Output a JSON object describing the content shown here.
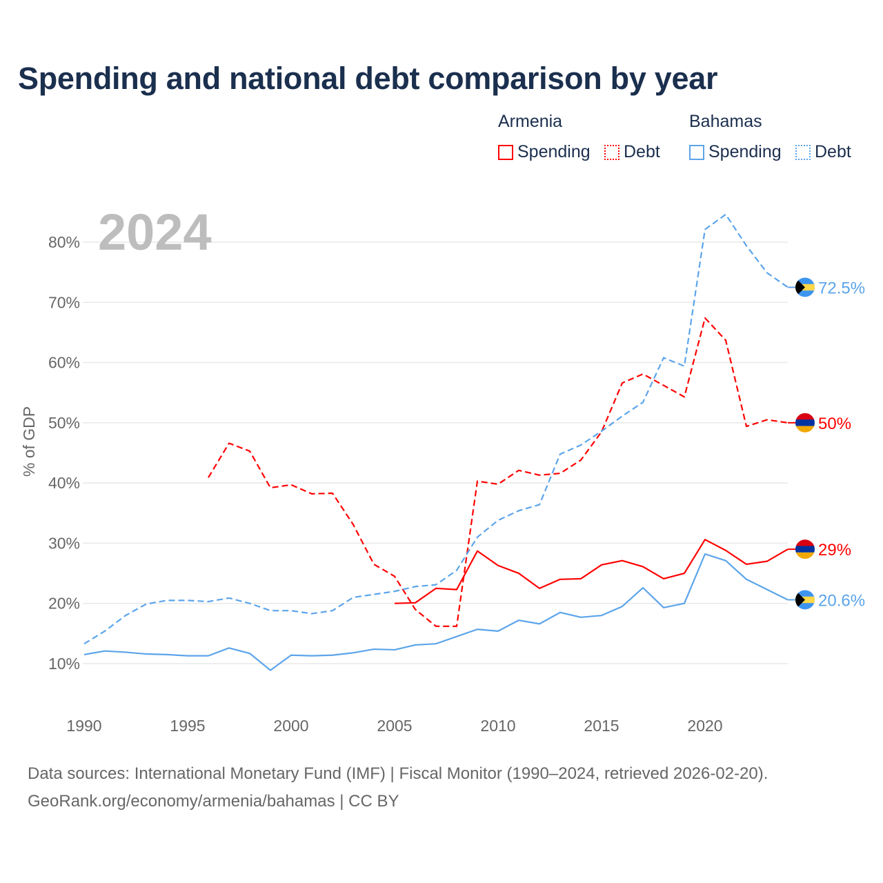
{
  "title": "Spending and national debt comparison by year",
  "legend": {
    "groups": [
      {
        "name": "Armenia",
        "color": "#ff0000",
        "items": [
          "Spending",
          "Debt"
        ]
      },
      {
        "name": "Bahamas",
        "color": "#5ba4ea",
        "items": [
          "Spending",
          "Debt"
        ]
      }
    ]
  },
  "footer": {
    "line1": "Data sources: International Monetary Fund (IMF) | Fiscal Monitor (1990–2024, retrieved 2026-02-20).",
    "line2": "GeoRank.org/economy/armenia/bahamas | CC BY"
  },
  "chart_data": {
    "type": "line",
    "title": "Spending and national debt comparison by year",
    "year_label": "2024",
    "xlabel": "",
    "ylabel": "% of GDP",
    "xlim": [
      1990,
      2024
    ],
    "ylim": [
      5,
      85
    ],
    "x_ticks": [
      "1990",
      "1995",
      "2000",
      "2005",
      "2010",
      "2015",
      "2020"
    ],
    "y_ticks": [
      "10%",
      "20%",
      "30%",
      "40%",
      "50%",
      "60%",
      "70%",
      "80%"
    ],
    "grid": true,
    "series": [
      {
        "name": "Armenia Debt",
        "country": "Armenia",
        "measure": "Debt",
        "color": "#ff0000",
        "dashed": true,
        "end_label": "50%",
        "flag": "armenia",
        "start": 1996,
        "values": [
          40.9,
          46.6,
          45.3,
          39.2,
          39.7,
          38.2,
          38.3,
          33.1,
          26.5,
          24.5,
          19.0,
          16.2,
          16.2,
          40.3,
          39.8,
          42.1,
          41.3,
          41.6,
          43.8,
          48.5,
          56.6,
          58.1,
          56.2,
          54.3,
          67.4,
          63.7,
          49.4,
          50.5,
          50.0
        ]
      },
      {
        "name": "Bahamas Debt",
        "country": "Bahamas",
        "measure": "Debt",
        "color": "#5ba4ea",
        "dashed": true,
        "end_label": "72.5%",
        "flag": "bahamas",
        "start": 1990,
        "values": [
          13.3,
          15.4,
          18.0,
          19.9,
          20.5,
          20.5,
          20.3,
          20.9,
          20.0,
          18.8,
          18.8,
          18.3,
          18.8,
          21.0,
          21.5,
          22.0,
          22.8,
          23.1,
          25.5,
          31.0,
          33.8,
          35.4,
          36.4,
          44.8,
          46.3,
          48.6,
          51.1,
          53.4,
          60.8,
          59.4,
          82.1,
          84.6,
          79.4,
          74.9,
          72.5
        ]
      },
      {
        "name": "Armenia Spending",
        "country": "Armenia",
        "measure": "Spending",
        "color": "#ff0000",
        "dashed": false,
        "end_label": "29%",
        "flag": "armenia",
        "start": 2005,
        "values": [
          20.0,
          20.1,
          22.5,
          22.3,
          28.7,
          26.3,
          25.0,
          22.5,
          24.0,
          24.1,
          26.4,
          27.1,
          26.1,
          24.1,
          25.0,
          30.6,
          28.8,
          26.5,
          27.0,
          29.0
        ]
      },
      {
        "name": "Bahamas Spending",
        "country": "Bahamas",
        "measure": "Spending",
        "color": "#5ba4ea",
        "dashed": false,
        "end_label": "20.6%",
        "flag": "bahamas",
        "start": 1990,
        "values": [
          11.5,
          12.1,
          11.9,
          11.6,
          11.5,
          11.3,
          11.3,
          12.6,
          11.7,
          8.9,
          11.4,
          11.3,
          11.4,
          11.8,
          12.4,
          12.3,
          13.1,
          13.3,
          14.5,
          15.7,
          15.4,
          17.2,
          16.6,
          18.5,
          17.7,
          18.0,
          19.5,
          22.6,
          19.3,
          20.0,
          28.2,
          27.1,
          24.0,
          22.3,
          20.6
        ]
      }
    ]
  }
}
